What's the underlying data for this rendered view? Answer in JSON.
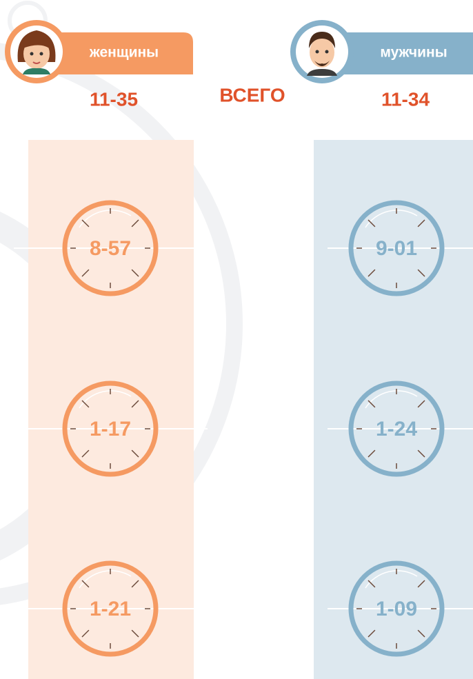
{
  "women": {
    "label": "женщины",
    "total": "11-35",
    "times": [
      "8-57",
      "1-17",
      "1-21"
    ]
  },
  "men": {
    "label": "мужчины",
    "total": "11-34",
    "times": [
      "9-01",
      "1-24",
      "1-09"
    ]
  },
  "total_label": "ВСЕГО"
}
